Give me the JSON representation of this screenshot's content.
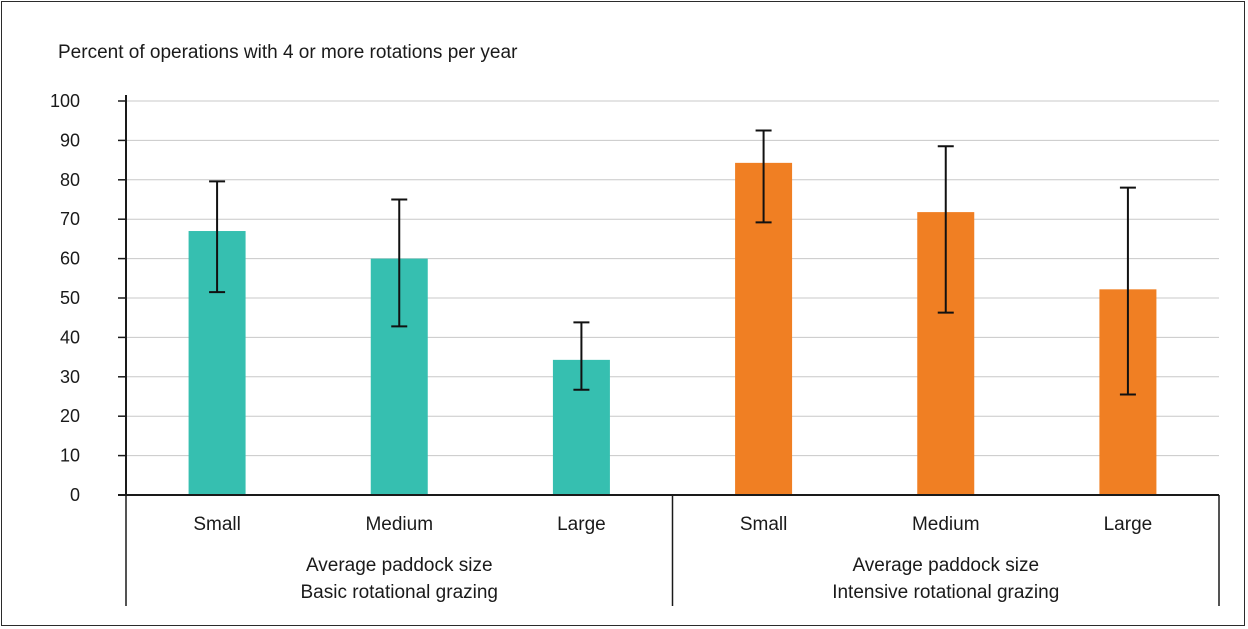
{
  "chart_data": {
    "type": "bar",
    "ylabel": "Percent of operations with 4 or more rotations per year",
    "ylim": [
      0,
      100
    ],
    "yticks": [
      0,
      10,
      20,
      30,
      40,
      50,
      60,
      70,
      80,
      90,
      100
    ],
    "grid": true,
    "categories": [
      "Small",
      "Medium",
      "Large",
      "Small",
      "Medium",
      "Large"
    ],
    "groups": [
      {
        "label_line1": "Average paddock size",
        "label_line2": "Basic rotational grazing",
        "color": "#36BFB0",
        "categories": [
          "Small",
          "Medium",
          "Large"
        ],
        "values": [
          67,
          60,
          34.3
        ],
        "error_low": [
          51.5,
          42.8,
          26.7
        ],
        "error_high": [
          79.6,
          75,
          43.8
        ]
      },
      {
        "label_line1": "Average paddock size",
        "label_line2": "Intensive rotational grazing",
        "color": "#F07F23",
        "categories": [
          "Small",
          "Medium",
          "Large"
        ],
        "values": [
          84.3,
          71.8,
          52.2
        ],
        "error_low": [
          69.2,
          46.3,
          25.5
        ],
        "error_high": [
          92.5,
          88.5,
          78
        ]
      }
    ]
  }
}
